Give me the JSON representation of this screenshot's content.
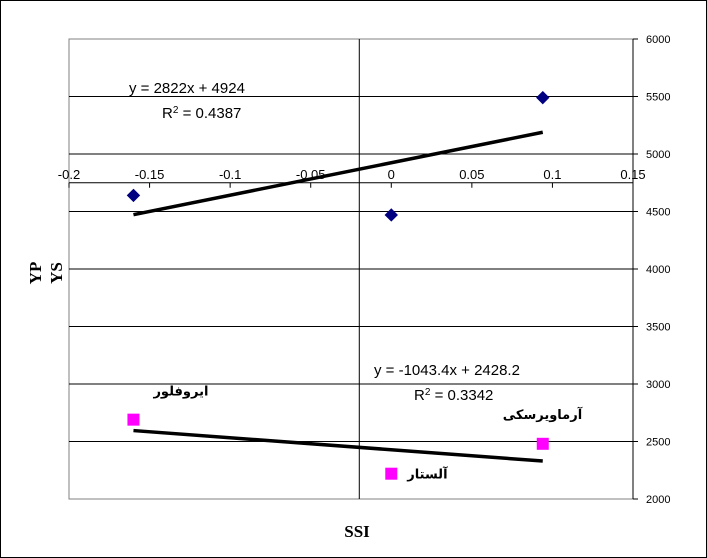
{
  "chart_data": {
    "type": "scatter",
    "title": "",
    "xlabel": "SSI",
    "ylabel_outer": "YP",
    "ylabel_inner": "YS",
    "x_axis": {
      "range": [
        -0.2,
        0.15
      ],
      "ticks": [
        -0.2,
        -0.15,
        -0.1,
        -0.05,
        0,
        0.05,
        0.1,
        0.15
      ],
      "tick_labels": [
        "-0.2",
        "-0.15",
        "-0.1",
        "-0.05",
        "0",
        "0.05",
        "0.1",
        "0.15"
      ],
      "crosses_at_y": 4750
    },
    "y_axis_right": {
      "range": [
        2000,
        6000
      ],
      "ticks": [
        2000,
        2500,
        3000,
        3500,
        4000,
        4500,
        5000,
        5500,
        6000
      ],
      "tick_labels": [
        "2000",
        "2500",
        "3000",
        "3500",
        "4000",
        "4500",
        "5000",
        "5500",
        "6000"
      ]
    },
    "grid": {
      "horizontal": true,
      "vertical": false
    },
    "series": [
      {
        "marker": "diamond",
        "color": "#000080",
        "points": [
          {
            "x": -0.16,
            "y": 4640
          },
          {
            "x": 0,
            "y": 4470
          },
          {
            "x": 0.094,
            "y": 5490
          }
        ],
        "trendline": {
          "slope": 2822,
          "intercept": 4924,
          "x_range": [
            -0.16,
            0.094
          ]
        },
        "equation": "y = 2822x + 4924",
        "r2_prefix": "R",
        "r2_suffix": " = 0.4387"
      },
      {
        "marker": "square",
        "color": "#FF00FF",
        "points": [
          {
            "x": -0.16,
            "y": 2690,
            "label": "ایروفلور"
          },
          {
            "x": 0,
            "y": 2220,
            "label": "آلستار"
          },
          {
            "x": 0.094,
            "y": 2480,
            "label": "آرماویرسکی"
          }
        ],
        "trendline": {
          "slope": -1043.4,
          "intercept": 2428.2,
          "x_range": [
            -0.16,
            0.094
          ]
        },
        "equation": "y = -1043.4x + 2428.2",
        "r2_prefix": "R",
        "r2_suffix": " = 0.3342"
      }
    ]
  }
}
